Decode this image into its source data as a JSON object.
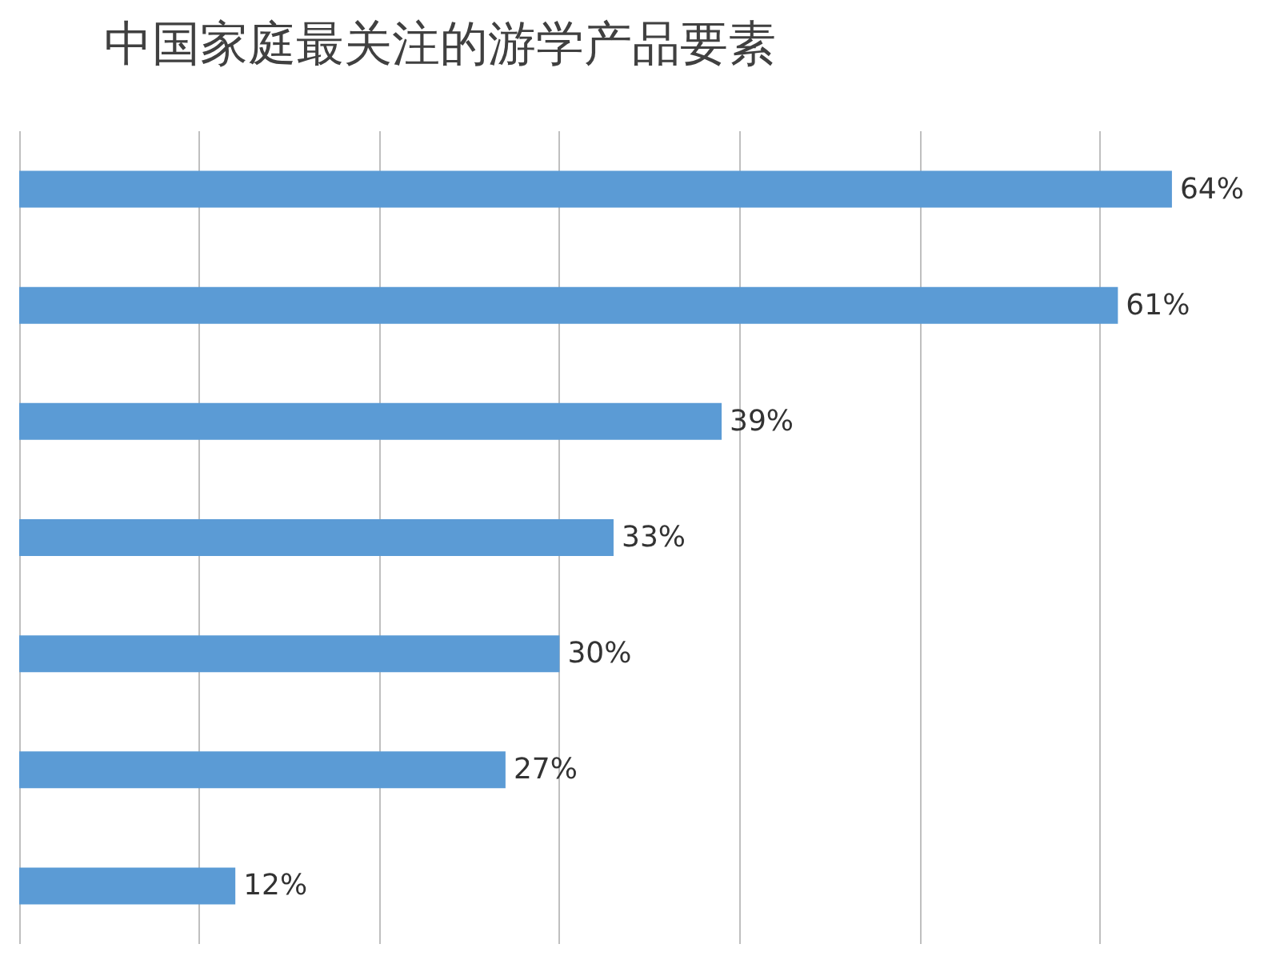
{
  "chart_data": {
    "type": "bar",
    "orientation": "horizontal",
    "title": "中国家庭最关注的游学产品要素",
    "categories": [
      null,
      null,
      null,
      null,
      null,
      null,
      null
    ],
    "values": [
      64,
      61,
      39,
      33,
      30,
      27,
      12
    ],
    "value_labels": [
      "64%",
      "61%",
      "39%",
      "33%",
      "30%",
      "27%",
      "12%"
    ],
    "color": "#5b9bd5",
    "xlim": [
      0,
      70
    ],
    "xticks": [
      {
        "value": 0,
        "label": null
      },
      {
        "value": 10,
        "label": null
      },
      {
        "value": 20,
        "label": null
      },
      {
        "value": 30,
        "label": null
      },
      {
        "value": 40,
        "label": null
      },
      {
        "value": 50,
        "label": null
      },
      {
        "value": 60,
        "label": null
      }
    ],
    "grid": "x"
  }
}
